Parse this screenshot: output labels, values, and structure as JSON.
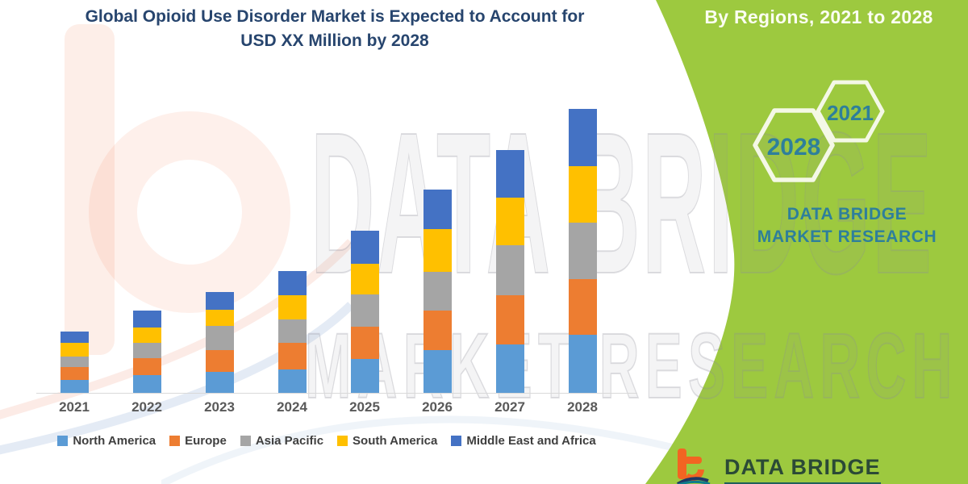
{
  "banner": {
    "title": "Global Opioid Use Disorder Market is Expected to Account for USD XX Million by 2028",
    "side_panel": {
      "heading": "By Regions, 2021 to 2028",
      "hexagon_years": [
        "2028",
        "2021"
      ],
      "brand_name": "DATA BRIDGE MARKET RESEARCH"
    },
    "watermark": {
      "line1": "DATA BRIDGE",
      "line2": "MARKET RESEARCH"
    },
    "footer": {
      "brand": "DATA BRIDGE"
    }
  },
  "colors": {
    "accent_green": "#9DC93F",
    "title_navy": "#27456E",
    "brand_teal": "#2E7F9B",
    "hexagon_stroke": "#F4F8E6",
    "axis_gray": "#D9D9D9",
    "x_label_gray": "#595959",
    "legend_text": "#3F3F3F",
    "logo_orange": "#F26522"
  },
  "chart_data": {
    "type": "bar",
    "stacked": true,
    "title": "Global Opioid Use Disorder Market, By Regions, 2021 to 2028",
    "categories": [
      "2021",
      "2022",
      "2023",
      "2024",
      "2025",
      "2026",
      "2027",
      "2028"
    ],
    "series": [
      {
        "name": "North America",
        "color": "#5B9BD5",
        "values": [
          16,
          22,
          26,
          29,
          42,
          53,
          60,
          72
        ]
      },
      {
        "name": "Europe",
        "color": "#ED7D31",
        "values": [
          16,
          21,
          27,
          33,
          40,
          49,
          61,
          69
        ]
      },
      {
        "name": "Asia Pacific",
        "color": "#A5A5A5",
        "values": [
          13,
          19,
          30,
          29,
          40,
          48,
          62,
          70
        ]
      },
      {
        "name": "South America",
        "color": "#FFC000",
        "values": [
          17,
          19,
          20,
          30,
          38,
          53,
          59,
          70
        ]
      },
      {
        "name": "Middle East and Africa",
        "color": "#4472C4",
        "values": [
          14,
          21,
          22,
          30,
          41,
          49,
          59,
          71
        ]
      }
    ],
    "totals": [
      76,
      102,
      125,
      151,
      201,
      252,
      301,
      352
    ],
    "units": "relative scale — actual values undisclosed (USD XX Million)",
    "value_axis_visible": false,
    "grid": false,
    "legend_position": "bottom",
    "xlabel": "",
    "ylabel": ""
  }
}
